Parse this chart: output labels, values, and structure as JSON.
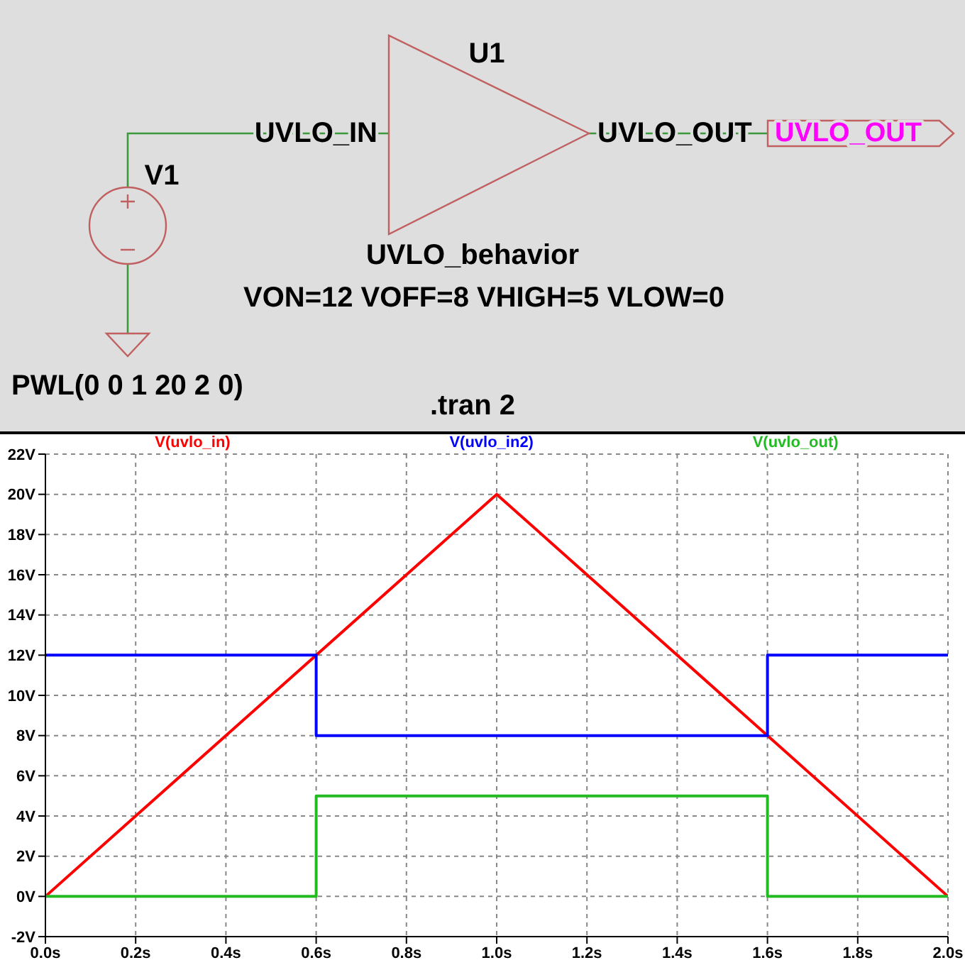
{
  "chart_data": [
    {
      "type": "other",
      "annotations": [
        "U1",
        "UVLO_IN",
        "UVLO_OUT",
        "UVLO_OUT",
        "V1",
        "UVLO_behavior",
        "VON=12 VOFF=8 VHIGH=5 VLOW=0",
        "PWL(0 0 1 20 2 0)",
        ".tran 2"
      ]
    },
    {
      "type": "line",
      "series": [
        {
          "name": "V(uvlo_in)",
          "color": "#ff0000",
          "x": [
            0,
            1,
            2
          ],
          "values": [
            0,
            20,
            0
          ]
        },
        {
          "name": "V(uvlo_in2)",
          "color": "#0000ff",
          "type": "step",
          "x": [
            0,
            0.6,
            1.6,
            2
          ],
          "values": [
            12,
            8,
            12,
            12
          ]
        },
        {
          "name": "V(uvlo_out)",
          "color": "#22bb22",
          "type": "step",
          "x": [
            0,
            0.6,
            1.6,
            2
          ],
          "values": [
            0,
            5,
            0,
            0
          ]
        }
      ],
      "xlim": [
        0,
        2
      ],
      "xticks": [
        {
          "value": 0,
          "label": "0.0s"
        },
        {
          "value": 0.2,
          "label": "0.2s"
        },
        {
          "value": 0.4,
          "label": "0.4s"
        },
        {
          "value": 0.6,
          "label": "0.6s"
        },
        {
          "value": 0.8,
          "label": "0.8s"
        },
        {
          "value": 1,
          "label": "1.0s"
        },
        {
          "value": 1.2,
          "label": "1.2s"
        },
        {
          "value": 1.4,
          "label": "1.4s"
        },
        {
          "value": 1.6,
          "label": "1.6s"
        },
        {
          "value": 1.8,
          "label": "1.8s"
        },
        {
          "value": 2,
          "label": "2.0s"
        }
      ],
      "ylim": [
        -2,
        22
      ],
      "yticks": [
        {
          "value": -2,
          "label": "-2V"
        },
        {
          "value": 0,
          "label": "0V"
        },
        {
          "value": 2,
          "label": "2V"
        },
        {
          "value": 4,
          "label": "4V"
        },
        {
          "value": 6,
          "label": "6V"
        },
        {
          "value": 8,
          "label": "8V"
        },
        {
          "value": 10,
          "label": "10V"
        },
        {
          "value": 12,
          "label": "12V"
        },
        {
          "value": 14,
          "label": "14V"
        },
        {
          "value": 16,
          "label": "16V"
        },
        {
          "value": 18,
          "label": "18V"
        },
        {
          "value": 20,
          "label": "20V"
        },
        {
          "value": 22,
          "label": "22V"
        }
      ],
      "grid": true,
      "legend": "top"
    }
  ]
}
